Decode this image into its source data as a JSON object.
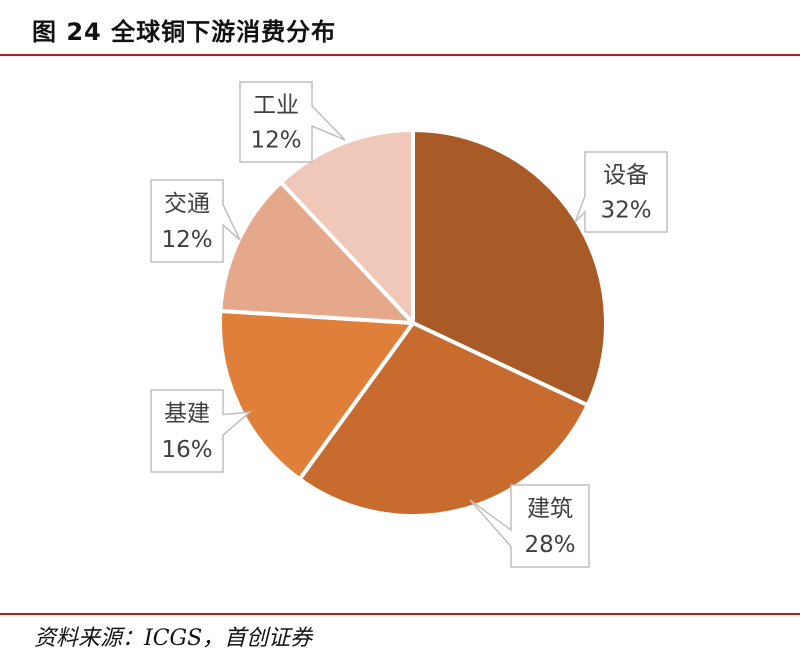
{
  "header": {
    "title": "图 24 全球铜下游消费分布"
  },
  "chart_data": {
    "type": "pie",
    "title": "图 24 全球铜下游消费分布",
    "slices": [
      {
        "label": "设备",
        "value": 32,
        "value_label": "32%",
        "color": "#a85b27"
      },
      {
        "label": "建筑",
        "value": 28,
        "value_label": "28%",
        "color": "#c76c2e"
      },
      {
        "label": "基建",
        "value": 16,
        "value_label": "16%",
        "color": "#e07f39"
      },
      {
        "label": "交通",
        "value": 12,
        "value_label": "12%",
        "color": "#e6a88b"
      },
      {
        "label": "工业",
        "value": 12,
        "value_label": "12%",
        "color": "#efc8b9"
      }
    ],
    "start_angle_deg": 0,
    "direction": "clockwise",
    "legend": "none",
    "labels": "callouts"
  },
  "footer": {
    "source": "资料来源：ICGS，首创证券"
  },
  "colors": {
    "rule": "#b0201f"
  }
}
